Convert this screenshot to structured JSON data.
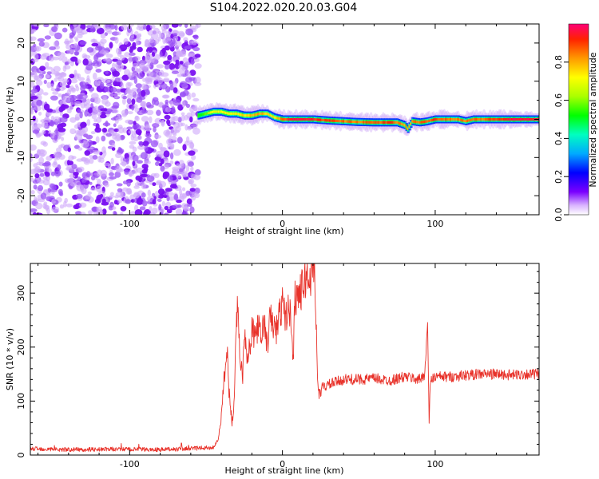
{
  "title": "S104.2022.020.20.03.G04",
  "chart_data": [
    {
      "type": "heatmap",
      "xlabel": "Height of straight line (km)",
      "ylabel": "Frequency (Hz)",
      "xlim": [
        -165,
        168
      ],
      "ylim": [
        -25,
        25
      ],
      "xticks": [
        -100,
        0,
        100
      ],
      "yticks": [
        -20,
        -10,
        0,
        10,
        20
      ],
      "colorbar": {
        "label": "Normalized spectral amplitude",
        "range": [
          0,
          1
        ],
        "ticks": [
          0.0,
          0.2,
          0.4,
          0.6,
          0.8
        ]
      },
      "noise_region_x": [
        -165,
        -55
      ],
      "band_centerline": {
        "x": [
          -55,
          -45,
          -40,
          -35,
          -30,
          -25,
          -20,
          -15,
          -10,
          -5,
          0,
          10,
          20,
          30,
          40,
          50,
          60,
          70,
          75,
          80,
          82,
          85,
          90,
          95,
          100,
          105,
          110,
          115,
          120,
          125,
          130,
          140,
          150,
          160,
          168
        ],
        "y": [
          1.0,
          2.0,
          2.0,
          1.5,
          1.5,
          1.0,
          1.0,
          1.5,
          1.5,
          0.5,
          0.0,
          0.0,
          0.0,
          -0.3,
          -0.5,
          -0.7,
          -0.8,
          -0.8,
          -0.8,
          -1.5,
          -2.5,
          -0.5,
          -0.8,
          -0.5,
          0.0,
          0.0,
          0.0,
          0.0,
          -0.5,
          0.0,
          0.0,
          0.0,
          0.0,
          0.0,
          0.0
        ]
      },
      "band_amplitude": {
        "x": [
          -55,
          -45,
          -35,
          -25,
          -15,
          -5,
          5,
          15,
          25,
          40,
          55,
          70,
          80,
          90,
          100,
          110,
          120,
          130,
          140,
          150,
          160,
          168
        ],
        "value": [
          0.5,
          0.7,
          0.7,
          0.75,
          0.8,
          0.75,
          0.95,
          0.95,
          0.9,
          0.85,
          0.85,
          0.9,
          0.8,
          0.85,
          0.9,
          0.85,
          0.85,
          0.85,
          0.9,
          0.95,
          0.95,
          0.95
        ]
      }
    },
    {
      "type": "line",
      "xlabel": "Height of straight line (km)",
      "ylabel": "SNR (10 * v/v)",
      "xlim": [
        -165,
        168
      ],
      "ylim": [
        0,
        355
      ],
      "xticks": [
        -100,
        0,
        100
      ],
      "yticks": [
        0,
        100,
        200,
        300
      ],
      "color": "#e8322a",
      "series": [
        {
          "x": [
            -165,
            -140,
            -110,
            -80,
            -60,
            -45,
            -42,
            -40,
            -38,
            -36,
            -35,
            -33,
            -32,
            -31,
            -30,
            -29,
            -28,
            -26,
            -25,
            -23,
            -22,
            -21,
            -20,
            -18,
            -16,
            -14,
            -12,
            -10,
            -8,
            -6,
            -4,
            -2,
            0,
            2,
            4,
            6,
            7,
            8,
            10,
            12,
            14,
            16,
            18,
            20,
            21,
            22,
            23,
            24,
            26,
            30,
            35,
            40,
            50,
            60,
            70,
            80,
            90,
            93,
            94,
            95,
            96,
            97,
            100,
            110,
            120,
            130,
            140,
            150,
            160,
            168
          ],
          "y": [
            12,
            10,
            11,
            10,
            12,
            14,
            30,
            70,
            150,
            190,
            120,
            60,
            80,
            160,
            240,
            300,
            180,
            150,
            240,
            180,
            200,
            190,
            230,
            220,
            240,
            215,
            250,
            200,
            255,
            240,
            230,
            260,
            280,
            255,
            270,
            250,
            170,
            290,
            300,
            300,
            320,
            330,
            325,
            350,
            355,
            250,
            140,
            110,
            125,
            130,
            135,
            140,
            140,
            142,
            138,
            145,
            140,
            150,
            190,
            245,
            65,
            140,
            145,
            145,
            148,
            150,
            150,
            148,
            150,
            150
          ]
        }
      ]
    }
  ]
}
